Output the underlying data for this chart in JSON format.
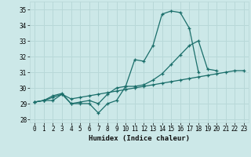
{
  "title": "",
  "xlabel": "Humidex (Indice chaleur)",
  "ylabel": "",
  "background_color": "#cce8e8",
  "grid_color": "#b8d8d8",
  "line_color": "#1a6e6a",
  "xlim": [
    -0.5,
    23.5
  ],
  "ylim": [
    27.8,
    35.5
  ],
  "xticks": [
    0,
    1,
    2,
    3,
    4,
    5,
    6,
    7,
    8,
    9,
    10,
    11,
    12,
    13,
    14,
    15,
    16,
    17,
    18,
    19,
    20,
    21,
    22,
    23
  ],
  "yticks": [
    28,
    29,
    30,
    31,
    32,
    33,
    34,
    35
  ],
  "series": [
    [
      29.1,
      29.2,
      29.2,
      29.6,
      29.0,
      29.0,
      29.0,
      28.4,
      29.0,
      29.2,
      30.1,
      31.8,
      31.7,
      32.7,
      34.7,
      34.9,
      34.8,
      33.8,
      31.0,
      null,
      null,
      null,
      null,
      null
    ],
    [
      29.1,
      29.2,
      29.5,
      29.65,
      29.0,
      29.1,
      29.2,
      29.0,
      29.6,
      30.0,
      30.1,
      30.1,
      30.2,
      30.5,
      30.9,
      31.5,
      32.1,
      32.7,
      33.0,
      31.2,
      31.1,
      null,
      null,
      null
    ],
    [
      29.1,
      29.2,
      29.4,
      29.6,
      29.3,
      29.4,
      29.5,
      29.6,
      29.7,
      29.8,
      29.9,
      30.0,
      30.1,
      30.2,
      30.3,
      30.4,
      30.5,
      30.6,
      30.7,
      30.8,
      30.9,
      31.0,
      31.1,
      31.1
    ]
  ]
}
